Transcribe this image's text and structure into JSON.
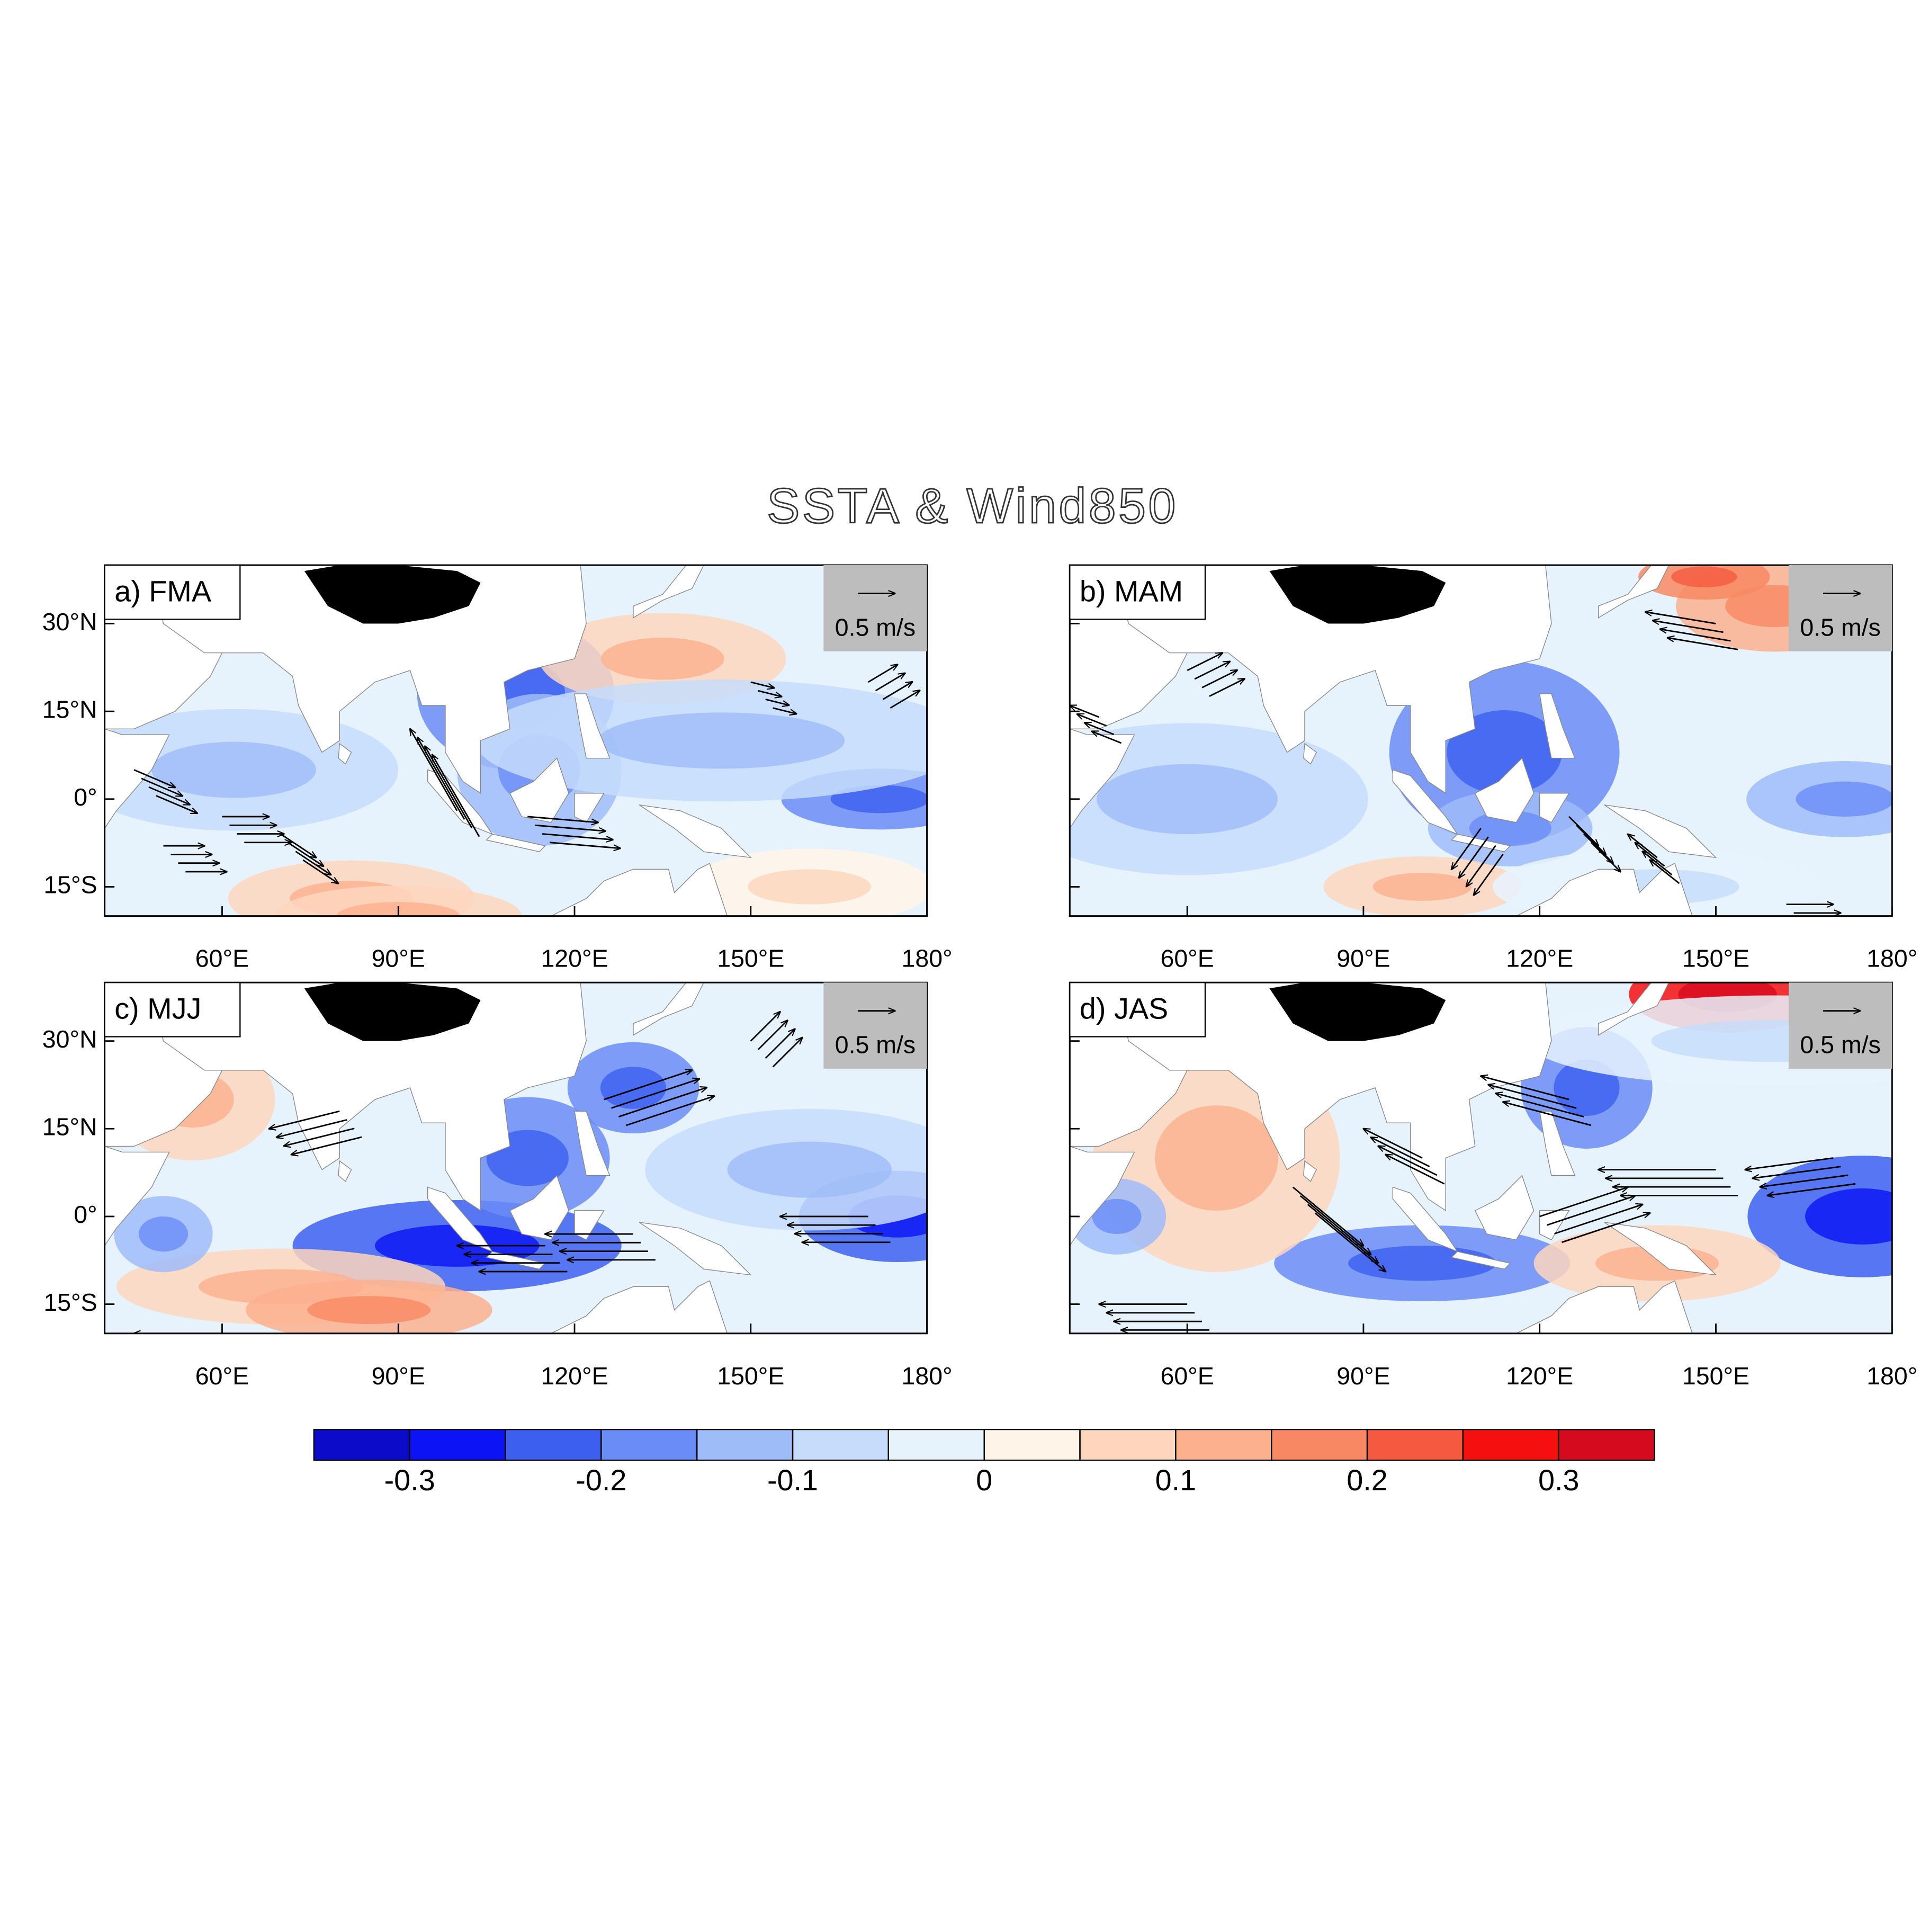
{
  "title": "SSTA & Wind850",
  "panels": [
    {
      "label": "a) FMA"
    },
    {
      "label": "b) MAM"
    },
    {
      "label": "c) MJJ"
    },
    {
      "label": "d) JAS"
    }
  ],
  "ref_vector_label": "0.5 m/s",
  "xlim": [
    40,
    180
  ],
  "ylim": [
    -20,
    40
  ],
  "xticks": [
    {
      "value": 60,
      "label": "60°E"
    },
    {
      "value": 90,
      "label": "90°E"
    },
    {
      "value": 120,
      "label": "120°E"
    },
    {
      "value": 150,
      "label": "150°E"
    },
    {
      "value": 180,
      "label": "180°"
    }
  ],
  "yticks": [
    {
      "value": 30,
      "label": "30°N"
    },
    {
      "value": 15,
      "label": "15°N"
    },
    {
      "value": 0,
      "label": "0°"
    },
    {
      "value": -15,
      "label": "15°S"
    }
  ],
  "colorbar": {
    "levels": [
      -0.3,
      -0.25,
      -0.2,
      -0.15,
      -0.1,
      -0.05,
      0,
      0.05,
      0.1,
      0.15,
      0.2,
      0.25,
      0.3
    ],
    "colors": [
      "#0c0cc8",
      "#0a14f5",
      "#3c5ff0",
      "#6a8cf7",
      "#9dbcf8",
      "#c6dcfb",
      "#e6f3fd",
      "#fff4e8",
      "#fdd6bd",
      "#fcb08e",
      "#f88863",
      "#f55a40",
      "#f50f0f",
      "#d60a1e"
    ],
    "ticks": [
      -0.3,
      -0.2,
      -0.1,
      0,
      0.1,
      0.2,
      0.3
    ]
  }
}
